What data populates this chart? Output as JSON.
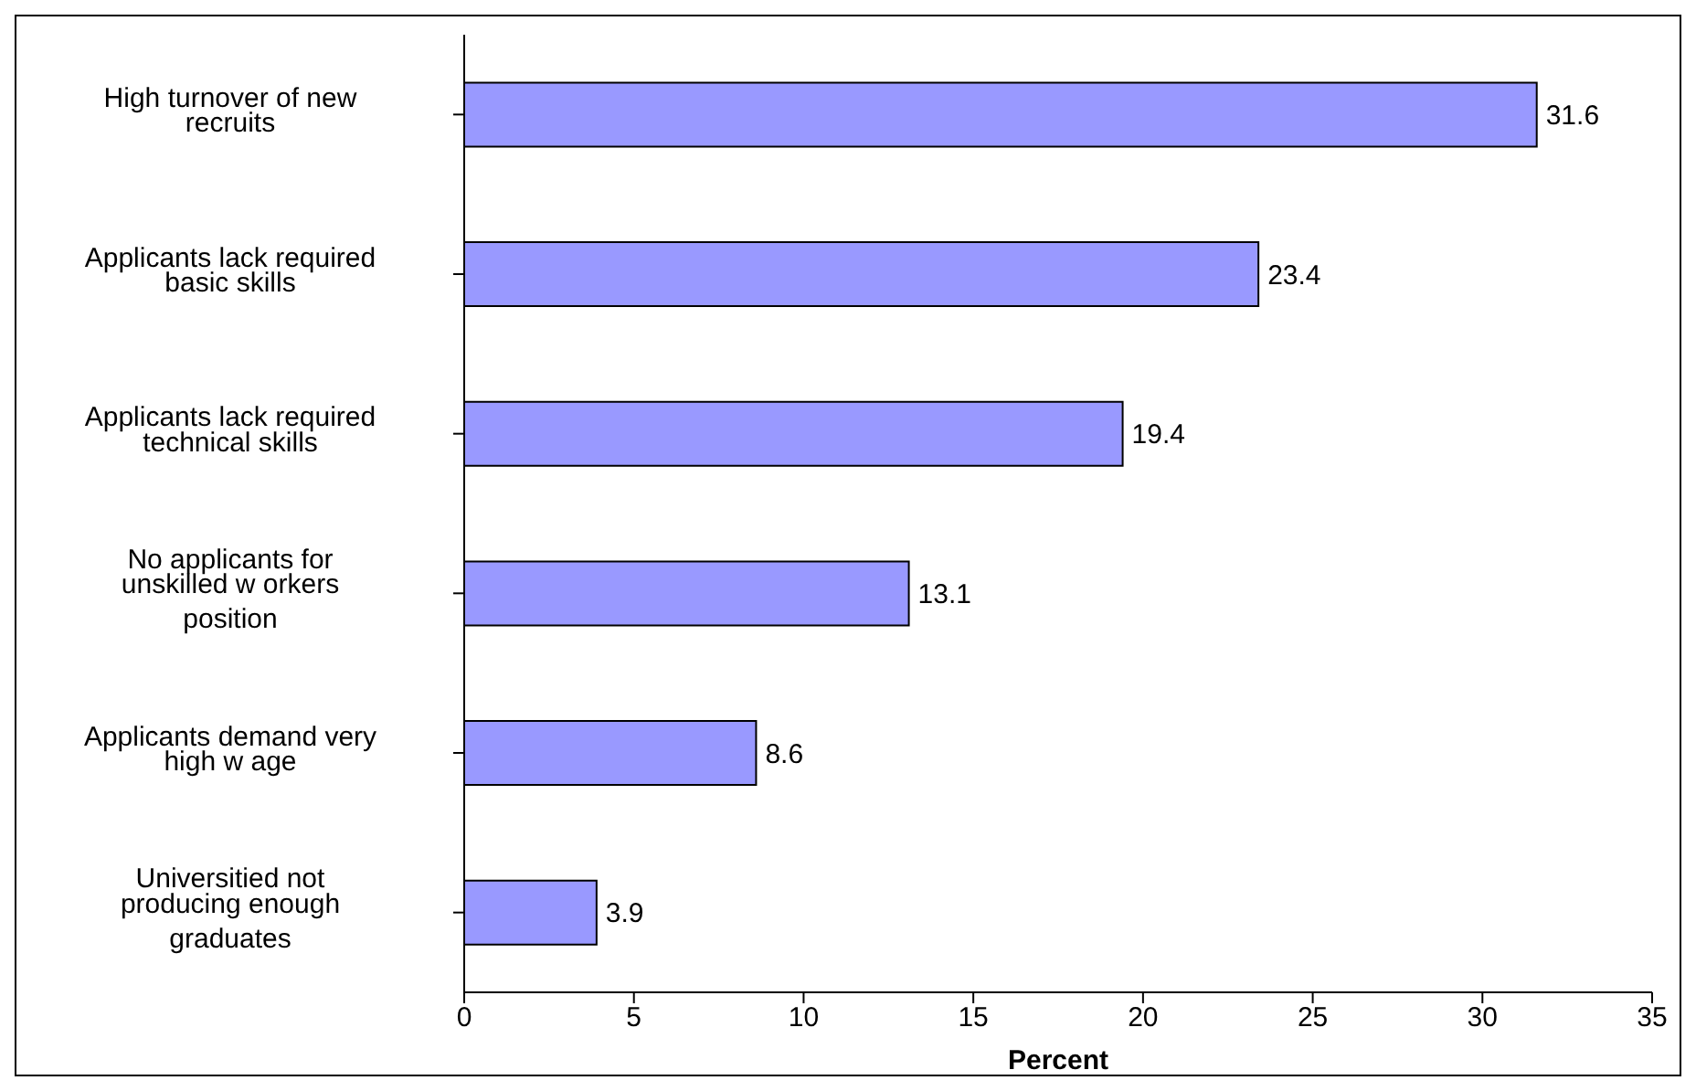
{
  "chart_data": {
    "type": "bar",
    "orientation": "horizontal",
    "xlabel": "Percent",
    "categories": [
      "High turnover of new recruits",
      "Applicants lack required basic skills",
      "Applicants lack required technical skills",
      "No applicants for unskilled w orkers position",
      "Applicants demand very high w age",
      "Universitied not producing enough graduates"
    ],
    "values": [
      31.6,
      23.4,
      19.4,
      13.1,
      8.6,
      3.9
    ],
    "color": "#9999ff",
    "xlim": [
      0,
      35
    ],
    "xticks": [
      0,
      5,
      10,
      15,
      20,
      25,
      30,
      35
    ],
    "data_labels": true,
    "grid": false,
    "legend": false
  }
}
